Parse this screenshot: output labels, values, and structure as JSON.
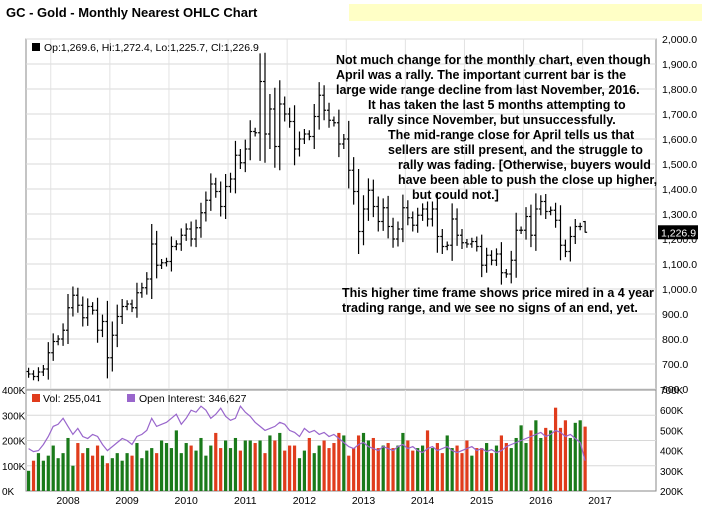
{
  "title": "GC - Gold - Monthly Nearest OHLC Chart",
  "price_legend": "Op:1,269.6, Hi:1,272.4, Lo:1,225.7, Cl:1,226.9",
  "price_badge": "1,226.9",
  "annotations": {
    "main": [
      "Not much change for the monthly chart, even though",
      "April was a rally.  The important current bar is the",
      "large wide range decline from last November, 2016.",
      "It has taken the last 5 months attempting to",
      "rally since November, but unsuccessfully.",
      "The mid-range close for April tells us that",
      "sellers are still present, and the struggle to",
      "rally was fading.  [Otherwise, buyers would",
      "have been able to push the close up higher,",
      "but could not.]"
    ],
    "secondary": [
      "This higher time frame shows price mired in a  4 year",
      "trading range, and we see no signs of an end, yet."
    ]
  },
  "volume_legend": {
    "vol": "Vol: 255,041",
    "oi": "Open Interest: 346,627"
  },
  "colors": {
    "up": "#1a7a1a",
    "down": "#e03c1c",
    "oi_line": "#9966cc",
    "legend_marker": "#000000"
  },
  "chart_data": [
    {
      "type": "ohlc",
      "title": "GC - Gold - Monthly Nearest OHLC Chart",
      "ylim": [
        600,
        2000
      ],
      "yticks": [
        "600.0",
        "700.0",
        "800.0",
        "900.0",
        "1,000.0",
        "1,100.0",
        "1,200.0",
        "1,300.0",
        "1,400.0",
        "1,500.0",
        "1,600.0",
        "1,700.0",
        "1,800.0",
        "1,900.0",
        "2,000.0"
      ],
      "x_start": "2007-05",
      "x_labels": [
        "2008",
        "2009",
        "2010",
        "2011",
        "2012",
        "2013",
        "2014",
        "2015",
        "2016",
        "2017"
      ],
      "closes": [
        660,
        650,
        668,
        680,
        745,
        790,
        800,
        835,
        925,
        975,
        935,
        885,
        930,
        915,
        835,
        870,
        725,
        815,
        890,
        930,
        940,
        925,
        985,
        1005,
        1040,
        1180,
        1095,
        1105,
        1110,
        1170,
        1180,
        1215,
        1240,
        1200,
        1245,
        1305,
        1355,
        1420,
        1390,
        1330,
        1410,
        1440,
        1535,
        1505,
        1560,
        1630,
        1625,
        1830,
        1620,
        1720,
        1570,
        1740,
        1700,
        1670,
        1560,
        1600,
        1620,
        1610,
        1690,
        1775,
        1715,
        1675,
        1665,
        1580,
        1600,
        1475,
        1390,
        1230,
        1320,
        1395,
        1330,
        1270,
        1325,
        1250,
        1200,
        1240,
        1325,
        1285,
        1255,
        1295,
        1320,
        1280,
        1320,
        1210,
        1170,
        1175,
        1280,
        1215,
        1185,
        1180,
        1190,
        1170,
        1095,
        1135,
        1115,
        1140,
        1065,
        1060,
        1115,
        1235,
        1235,
        1290,
        1215,
        1320,
        1350,
        1310,
        1315,
        1275,
        1175,
        1150,
        1210,
        1250,
        1250,
        1225
      ],
      "last": {
        "open": 1269.6,
        "high": 1272.4,
        "low": 1225.7,
        "close": 1226.9
      }
    },
    {
      "type": "bar",
      "series": [
        {
          "name": "Vol",
          "last": 255041
        },
        {
          "name": "Open Interest",
          "last": 346627
        }
      ],
      "ylim_left": [
        0,
        400000
      ],
      "yticks_left": [
        "0K",
        "100K",
        "200K",
        "300K",
        "400K"
      ],
      "ylim_right": [
        200000,
        700000
      ],
      "yticks_right": [
        "200K",
        "300K",
        "400K",
        "500K",
        "600K",
        "700K"
      ],
      "volume_k": [
        80,
        120,
        150,
        120,
        140,
        180,
        130,
        150,
        210,
        100,
        190,
        150,
        170,
        140,
        180,
        140,
        110,
        130,
        150,
        120,
        150,
        140,
        190,
        130,
        160,
        170,
        150,
        200,
        190,
        170,
        240,
        150,
        190,
        180,
        160,
        210,
        140,
        180,
        230,
        170,
        200,
        170,
        210,
        160,
        200,
        200,
        190,
        200,
        150,
        220,
        200,
        230,
        160,
        180,
        180,
        130,
        160,
        210,
        150,
        180,
        200,
        170,
        190,
        230,
        220,
        140,
        170,
        220,
        230,
        200,
        210,
        170,
        180,
        190,
        170,
        180,
        230,
        200,
        160,
        170,
        180,
        240,
        170,
        190,
        150,
        220,
        170,
        180,
        150,
        200,
        140,
        170,
        170,
        190,
        150,
        180,
        220,
        190,
        170,
        210,
        260,
        190,
        240,
        280,
        210,
        250,
        240,
        330,
        250,
        280,
        210,
        270,
        280,
        255
      ],
      "oi_k": [
        410,
        395,
        400,
        430,
        470,
        520,
        530,
        560,
        520,
        480,
        510,
        470,
        460,
        480,
        470,
        430,
        400,
        420,
        440,
        460,
        450,
        430,
        470,
        480,
        500,
        560,
        520,
        530,
        540,
        560,
        580,
        530,
        560,
        600,
        590,
        620,
        600,
        560,
        580,
        610,
        570,
        550,
        560,
        620,
        590,
        570,
        540,
        520,
        500,
        510,
        520,
        540,
        530,
        500,
        490,
        470,
        510,
        490,
        500,
        480,
        490,
        470,
        480,
        460,
        440,
        420,
        410,
        430,
        440,
        420,
        410,
        400,
        420,
        410,
        400,
        420,
        430,
        410,
        420,
        400,
        390,
        410,
        420,
        400,
        410,
        420,
        400,
        390,
        400,
        410,
        420,
        400,
        410,
        395,
        405,
        390,
        400,
        420,
        430,
        440,
        450,
        460,
        470,
        480,
        490,
        470,
        480,
        500,
        490,
        470,
        480,
        460,
        440,
        350
      ]
    }
  ]
}
